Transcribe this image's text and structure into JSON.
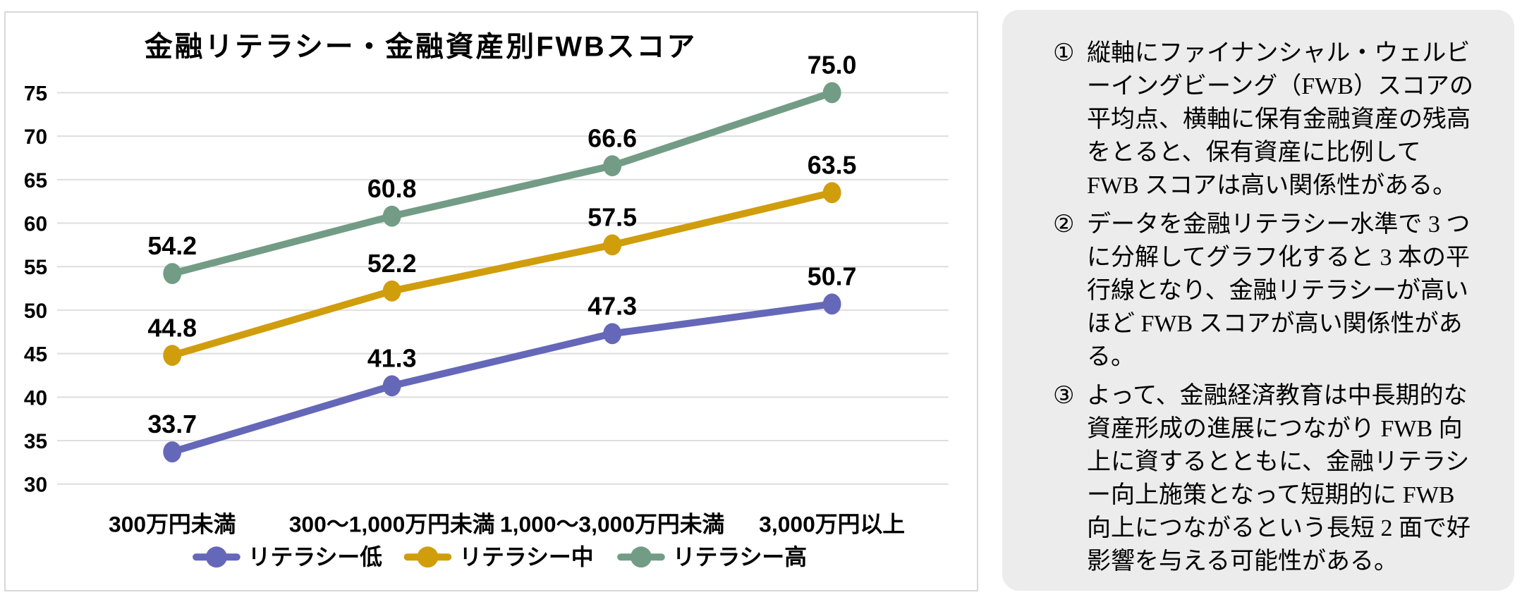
{
  "chart_data": {
    "type": "line",
    "title": "金融リテラシー・金融資産別FWBスコア",
    "categories": [
      "300万円未満",
      "300～1,000万円未満",
      "1,000～3,000万円未満",
      "3,000万円以上"
    ],
    "series": [
      {
        "name": "リテラシー低",
        "color": "#6567B8",
        "values": [
          33.7,
          41.3,
          47.3,
          50.7
        ]
      },
      {
        "name": "リテラシー中",
        "color": "#D09D0D",
        "values": [
          44.8,
          52.2,
          57.5,
          63.5
        ]
      },
      {
        "name": "リテラシー高",
        "color": "#739C86",
        "values": [
          54.2,
          60.8,
          66.6,
          75.0
        ]
      }
    ],
    "ylim": [
      30,
      75
    ],
    "yticks": [
      30,
      35,
      40,
      45,
      50,
      55,
      60,
      65,
      70,
      75
    ],
    "grid": true,
    "legend_position": "bottom",
    "gridline_color": "#dedede",
    "data_labels_shown": true
  },
  "notes_panel": {
    "background": "#ececec",
    "items": [
      {
        "marker": "①",
        "text": "縦軸にファイナンシャル・ウェルビ\nーイングビーング（FWB）スコアの\n平均点、横軸に保有金融資産の残高\nをとると、保有資産に比例して\nFWB スコアは高い関係性がある。"
      },
      {
        "marker": "②",
        "text": "データを金融リテラシー水準で 3 つ\nに分解してグラフ化すると 3 本の平\n行線となり、金融リテラシーが高い\nほど FWB スコアが高い関係性があ\nる。"
      },
      {
        "marker": "③",
        "text": "よって、金融経済教育は中長期的な\n資産形成の進展につながり FWB 向\n上に資するとともに、金融リテラシ\nー向上施策となって短期的に FWB\n向上につながるという長短 2 面で好\n影響を与える可能性がある。"
      }
    ]
  }
}
